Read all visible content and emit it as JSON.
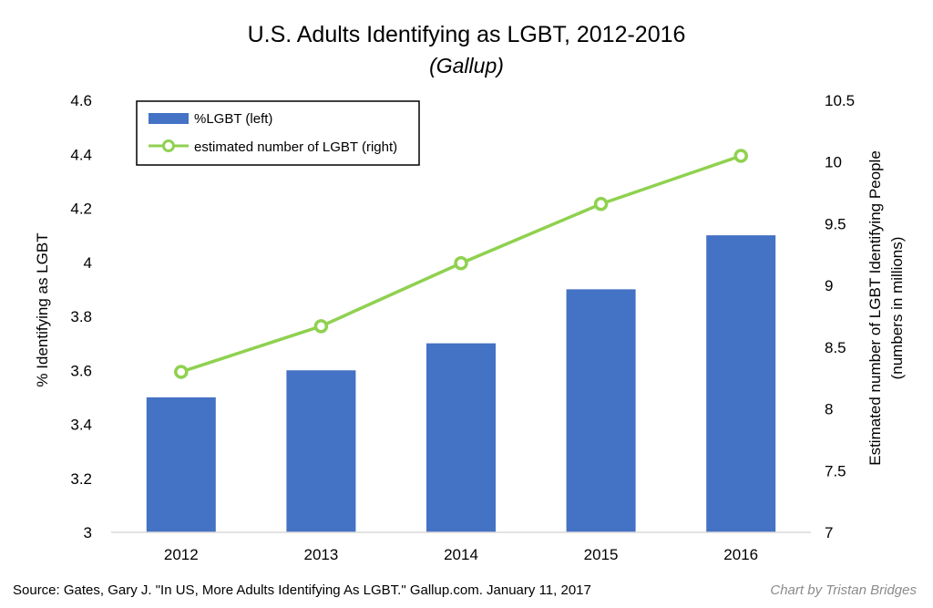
{
  "chart_data": {
    "type": "bar",
    "title": "U.S. Adults Identifying as LGBT, 2012-2016",
    "subtitle": "(Gallup)",
    "categories": [
      "2012",
      "2013",
      "2014",
      "2015",
      "2016"
    ],
    "series": [
      {
        "name": "%LGBT (left)",
        "kind": "bar",
        "axis": "left",
        "color": "#4472c4",
        "values": [
          3.5,
          3.6,
          3.7,
          3.9,
          4.1
        ]
      },
      {
        "name": "estimated number of LGBT (right)",
        "kind": "line",
        "axis": "right",
        "color": "#8fd14f",
        "values": [
          8.3,
          8.67,
          9.18,
          9.66,
          10.05
        ]
      }
    ],
    "ylabel": "% Identifying as LGBT",
    "y2label_line1": "Estimated number of LGBT Identifying People",
    "y2label_line2": "(numbers in millions)",
    "ylim": [
      3,
      4.6
    ],
    "y2lim": [
      7,
      10.5
    ],
    "yticks": [
      "3",
      "3.2",
      "3.4",
      "3.6",
      "3.8",
      "4",
      "4.2",
      "4.4",
      "4.6"
    ],
    "y2ticks": [
      "7",
      "7.5",
      "8",
      "8.5",
      "9",
      "9.5",
      "10",
      "10.5"
    ],
    "legend_position": "top-left",
    "grid": false
  },
  "footer": {
    "source": "Source: Gates, Gary  J. \"In US, More Adults Identifying As LGBT.\" Gallup.com. January 11, 2017",
    "credit": "Chart by Tristan Bridges"
  }
}
